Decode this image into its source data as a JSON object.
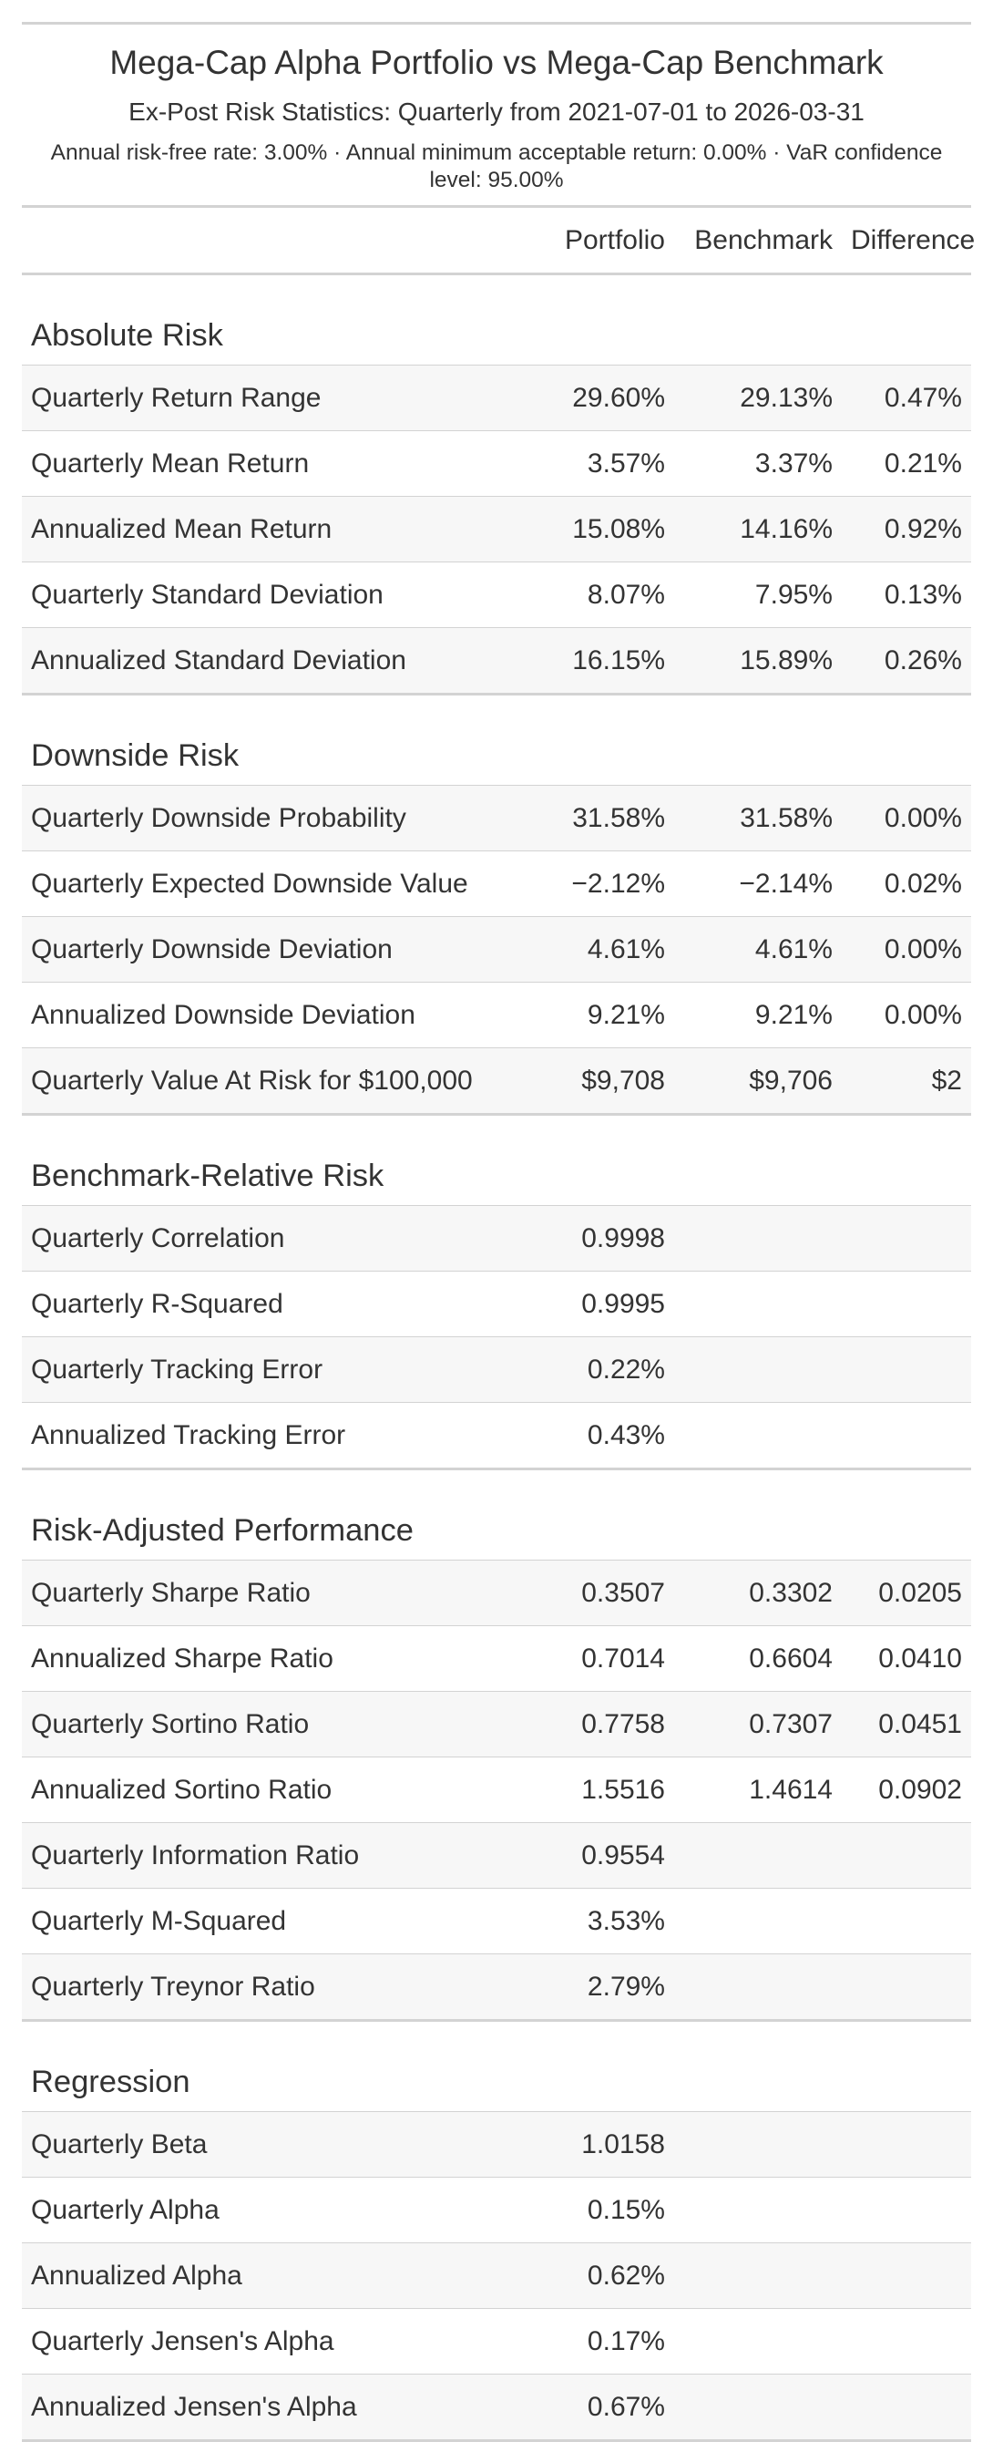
{
  "title": "Mega-Cap Alpha Portfolio vs Mega-Cap Benchmark",
  "subtitle": "Ex-Post Risk Statistics: Quarterly from 2021-07-01 to 2026-03-31",
  "note": "Annual risk-free rate: 3.00% · Annual minimum acceptable return: 0.00% · VaR confidence level: 95.00%",
  "columns": [
    "Portfolio",
    "Benchmark",
    "Difference"
  ],
  "sections": [
    {
      "name": "Absolute Risk",
      "rows": [
        {
          "label": "Quarterly Return Range",
          "portfolio": "29.60%",
          "benchmark": "29.13%",
          "difference": "0.47%"
        },
        {
          "label": "Quarterly Mean Return",
          "portfolio": "3.57%",
          "benchmark": "3.37%",
          "difference": "0.21%"
        },
        {
          "label": "Annualized Mean Return",
          "portfolio": "15.08%",
          "benchmark": "14.16%",
          "difference": "0.92%"
        },
        {
          "label": "Quarterly Standard Deviation",
          "portfolio": "8.07%",
          "benchmark": "7.95%",
          "difference": "0.13%"
        },
        {
          "label": "Annualized Standard Deviation",
          "portfolio": "16.15%",
          "benchmark": "15.89%",
          "difference": "0.26%"
        }
      ]
    },
    {
      "name": "Downside Risk",
      "rows": [
        {
          "label": "Quarterly Downside Probability",
          "portfolio": "31.58%",
          "benchmark": "31.58%",
          "difference": "0.00%"
        },
        {
          "label": "Quarterly Expected Downside Value",
          "portfolio": "−2.12%",
          "benchmark": "−2.14%",
          "difference": "0.02%"
        },
        {
          "label": "Quarterly Downside Deviation",
          "portfolio": "4.61%",
          "benchmark": "4.61%",
          "difference": "0.00%"
        },
        {
          "label": "Annualized Downside Deviation",
          "portfolio": "9.21%",
          "benchmark": "9.21%",
          "difference": "0.00%"
        },
        {
          "label": "Quarterly Value At Risk for $100,000",
          "portfolio": "$9,708",
          "benchmark": "$9,706",
          "difference": "$2"
        }
      ]
    },
    {
      "name": "Benchmark-Relative Risk",
      "rows": [
        {
          "label": "Quarterly Correlation",
          "portfolio": "0.9998",
          "benchmark": "",
          "difference": ""
        },
        {
          "label": "Quarterly R-Squared",
          "portfolio": "0.9995",
          "benchmark": "",
          "difference": ""
        },
        {
          "label": "Quarterly Tracking Error",
          "portfolio": "0.22%",
          "benchmark": "",
          "difference": ""
        },
        {
          "label": "Annualized Tracking Error",
          "portfolio": "0.43%",
          "benchmark": "",
          "difference": ""
        }
      ]
    },
    {
      "name": "Risk-Adjusted Performance",
      "rows": [
        {
          "label": "Quarterly Sharpe Ratio",
          "portfolio": "0.3507",
          "benchmark": "0.3302",
          "difference": "0.0205"
        },
        {
          "label": "Annualized Sharpe Ratio",
          "portfolio": "0.7014",
          "benchmark": "0.6604",
          "difference": "0.0410"
        },
        {
          "label": "Quarterly Sortino Ratio",
          "portfolio": "0.7758",
          "benchmark": "0.7307",
          "difference": "0.0451"
        },
        {
          "label": "Annualized Sortino Ratio",
          "portfolio": "1.5516",
          "benchmark": "1.4614",
          "difference": "0.0902"
        },
        {
          "label": "Quarterly Information Ratio",
          "portfolio": "0.9554",
          "benchmark": "",
          "difference": ""
        },
        {
          "label": "Quarterly M-Squared",
          "portfolio": "3.53%",
          "benchmark": "",
          "difference": ""
        },
        {
          "label": "Quarterly Treynor Ratio",
          "portfolio": "2.79%",
          "benchmark": "",
          "difference": ""
        }
      ]
    },
    {
      "name": "Regression",
      "rows": [
        {
          "label": "Quarterly Beta",
          "portfolio": "1.0158",
          "benchmark": "",
          "difference": ""
        },
        {
          "label": "Quarterly Alpha",
          "portfolio": "0.15%",
          "benchmark": "",
          "difference": ""
        },
        {
          "label": "Annualized Alpha",
          "portfolio": "0.62%",
          "benchmark": "",
          "difference": ""
        },
        {
          "label": "Quarterly Jensen's Alpha",
          "portfolio": "0.17%",
          "benchmark": "",
          "difference": ""
        },
        {
          "label": "Annualized Jensen's Alpha",
          "portfolio": "0.67%",
          "benchmark": "",
          "difference": ""
        }
      ]
    }
  ]
}
